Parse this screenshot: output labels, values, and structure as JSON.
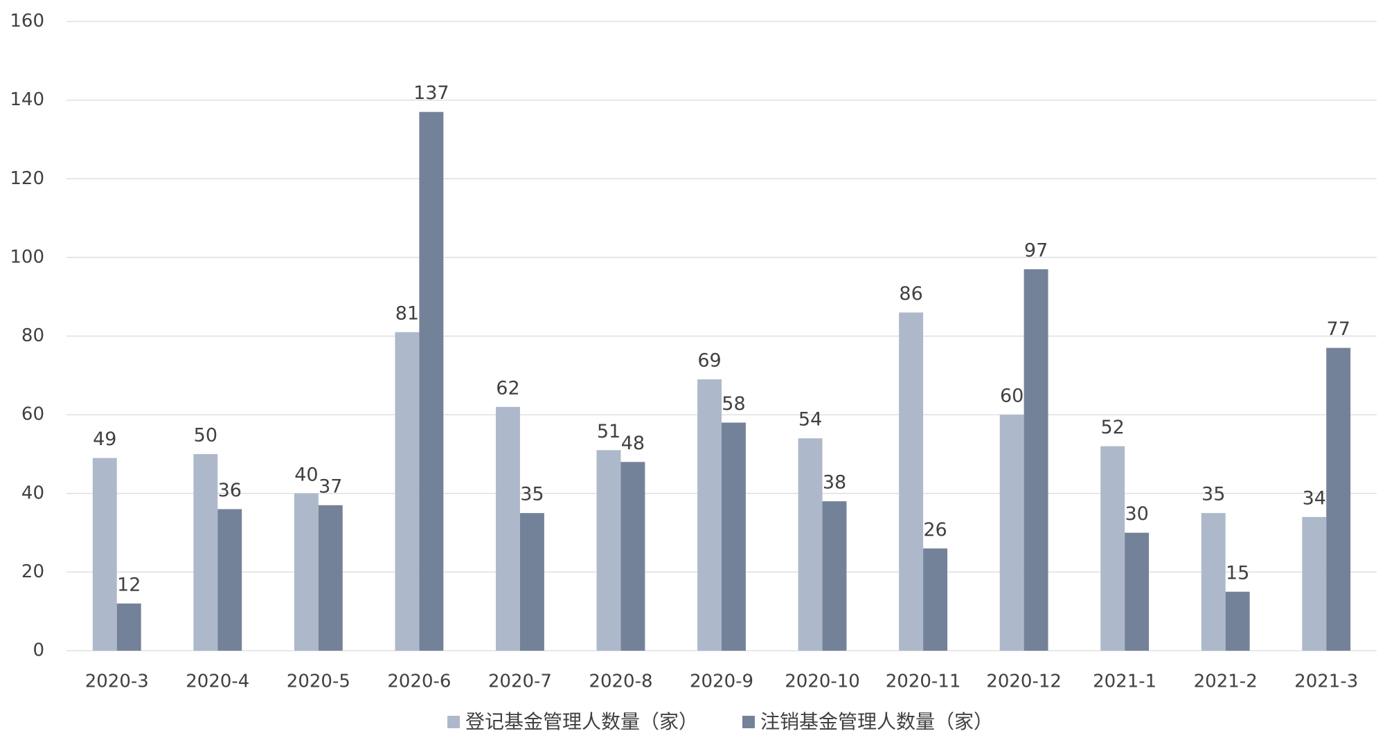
{
  "chart_data": {
    "type": "bar",
    "categories": [
      "2020-3",
      "2020-4",
      "2020-5",
      "2020-6",
      "2020-7",
      "2020-8",
      "2020-9",
      "2020-10",
      "2020-11",
      "2020-12",
      "2021-1",
      "2021-2",
      "2021-3"
    ],
    "series": [
      {
        "name": "登记基金管理人数量（家）",
        "color": "#adb9ca",
        "values": [
          49,
          50,
          40,
          81,
          62,
          51,
          69,
          54,
          86,
          60,
          52,
          35,
          34
        ]
      },
      {
        "name": "注销基金管理人数量（家）",
        "color": "#748299",
        "values": [
          12,
          36,
          37,
          137,
          35,
          48,
          58,
          38,
          26,
          97,
          30,
          15,
          77
        ]
      }
    ],
    "ylim": [
      0,
      160
    ],
    "yticks": [
      0,
      20,
      40,
      60,
      80,
      100,
      120,
      140,
      160
    ],
    "grid": true,
    "legend": "bottom"
  }
}
